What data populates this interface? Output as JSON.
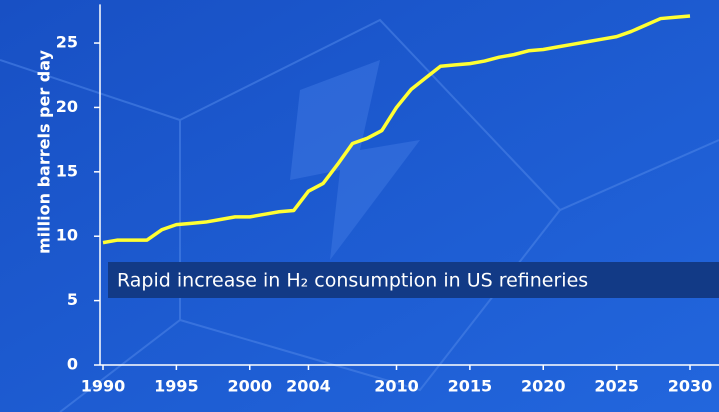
{
  "chart_data": {
    "type": "line",
    "y_label": "million barrels per day",
    "annotation": "Rapid increase in H₂ consumption in US refineries",
    "x": [
      1990,
      1991,
      1992,
      1993,
      1994,
      1995,
      1996,
      1997,
      1998,
      1999,
      2000,
      2001,
      2002,
      2003,
      2004,
      2005,
      2006,
      2007,
      2008,
      2009,
      2010,
      2011,
      2012,
      2013,
      2014,
      2015,
      2016,
      2017,
      2018,
      2019,
      2020,
      2021,
      2022,
      2023,
      2024,
      2025,
      2026,
      2027,
      2028,
      2029,
      2030
    ],
    "values": [
      9.5,
      9.7,
      9.7,
      9.7,
      10.5,
      10.9,
      11.0,
      11.1,
      11.3,
      11.5,
      11.5,
      11.7,
      11.9,
      12.0,
      13.5,
      14.1,
      15.6,
      17.2,
      17.6,
      18.2,
      20.0,
      21.4,
      22.3,
      23.2,
      23.3,
      23.4,
      23.6,
      23.9,
      24.1,
      24.4,
      24.5,
      24.7,
      24.9,
      25.1,
      25.3,
      25.5,
      25.9,
      26.4,
      26.9,
      27.0,
      27.1
    ],
    "color": "#ffff33",
    "xlim": [
      1990,
      2030
    ],
    "xticks": [
      1990,
      1995,
      2000,
      2004,
      2010,
      2015,
      2020,
      2025,
      2030
    ],
    "ylim": [
      0,
      28
    ],
    "yticks": [
      0,
      5,
      10,
      15,
      20,
      25
    ]
  }
}
